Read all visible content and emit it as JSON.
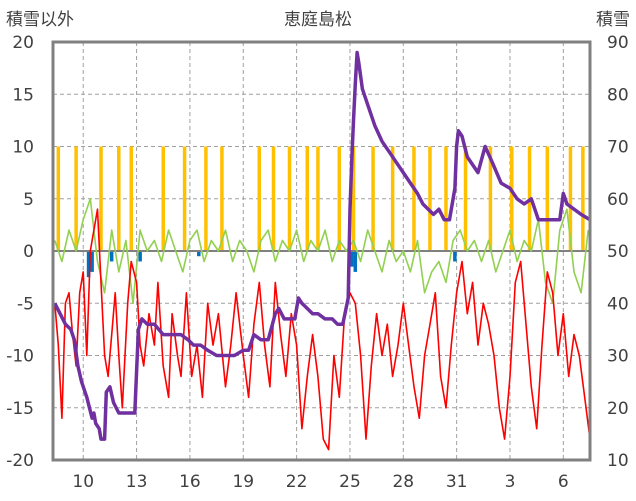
{
  "chart_data": {
    "type": "line",
    "title": "恵庭島松",
    "y_left_label": "積雪以外",
    "y_right_label": "積雪",
    "y_left_lim": [
      -20,
      20
    ],
    "y_right_lim": [
      10,
      90
    ],
    "y_left_ticks": [
      "20",
      "15",
      "10",
      "5",
      "0",
      "-5",
      "-10",
      "-15",
      "-20"
    ],
    "y_right_ticks": [
      "90",
      "80",
      "70",
      "60",
      "50",
      "40",
      "30",
      "20",
      "10"
    ],
    "x_ticks": [
      "10",
      "13",
      "16",
      "19",
      "22",
      "25",
      "28",
      "31",
      "3",
      "6"
    ],
    "x_tick_days": [
      10,
      13,
      16,
      19,
      22,
      25,
      28,
      31,
      34,
      37
    ],
    "x_range_days": [
      8.3,
      38.5
    ],
    "grid": true,
    "legend": "none",
    "colors": {
      "temperature": "#ff0000",
      "secondary": "#92d050",
      "snow_depth": "#7030a0",
      "positive_bars": "#ffc000",
      "negative_bars": "#0070c0",
      "grid": "#a0a0a0",
      "frame": "#808080"
    },
    "series": [
      {
        "axis": "right",
        "color": "#7030a0",
        "points": [
          [
            8.4,
            40
          ],
          [
            8.7,
            38
          ],
          [
            9.0,
            36
          ],
          [
            9.3,
            35
          ],
          [
            9.5,
            33
          ],
          [
            9.7,
            28
          ],
          [
            9.9,
            25
          ],
          [
            10.2,
            22
          ],
          [
            10.5,
            18
          ],
          [
            10.6,
            19
          ],
          [
            10.7,
            17
          ],
          [
            10.9,
            16
          ],
          [
            11.0,
            14
          ],
          [
            11.2,
            14
          ],
          [
            11.3,
            23
          ],
          [
            11.5,
            24
          ],
          [
            11.7,
            21
          ],
          [
            12.0,
            19
          ],
          [
            12.5,
            19
          ],
          [
            12.9,
            19
          ],
          [
            13.1,
            35
          ],
          [
            13.3,
            37
          ],
          [
            13.6,
            36
          ],
          [
            14.0,
            36
          ],
          [
            14.5,
            34
          ],
          [
            15.0,
            34
          ],
          [
            15.5,
            34
          ],
          [
            15.9,
            33
          ],
          [
            16.2,
            32
          ],
          [
            16.6,
            32
          ],
          [
            17.0,
            31
          ],
          [
            17.5,
            30
          ],
          [
            18.0,
            30
          ],
          [
            18.5,
            30
          ],
          [
            19.0,
            31
          ],
          [
            19.3,
            31
          ],
          [
            19.6,
            34
          ],
          [
            20.0,
            33
          ],
          [
            20.4,
            33
          ],
          [
            20.8,
            38
          ],
          [
            21.0,
            39
          ],
          [
            21.3,
            37
          ],
          [
            21.6,
            37
          ],
          [
            21.9,
            37
          ],
          [
            22.1,
            41
          ],
          [
            22.3,
            40
          ],
          [
            22.6,
            39
          ],
          [
            22.9,
            38
          ],
          [
            23.2,
            38
          ],
          [
            23.6,
            37
          ],
          [
            24.0,
            37
          ],
          [
            24.3,
            36
          ],
          [
            24.6,
            36
          ],
          [
            24.9,
            41
          ],
          [
            25.0,
            58
          ],
          [
            25.1,
            67
          ],
          [
            25.2,
            75
          ],
          [
            25.3,
            82
          ],
          [
            25.4,
            88
          ],
          [
            25.5,
            86
          ],
          [
            25.7,
            81
          ],
          [
            26.0,
            78
          ],
          [
            26.4,
            74
          ],
          [
            26.8,
            71
          ],
          [
            27.2,
            69
          ],
          [
            27.6,
            67
          ],
          [
            28.0,
            65
          ],
          [
            28.4,
            63
          ],
          [
            28.8,
            61
          ],
          [
            29.1,
            59
          ],
          [
            29.4,
            58
          ],
          [
            29.7,
            57
          ],
          [
            30.0,
            58
          ],
          [
            30.3,
            56
          ],
          [
            30.6,
            56
          ],
          [
            30.9,
            62
          ],
          [
            31.0,
            70
          ],
          [
            31.1,
            73
          ],
          [
            31.3,
            72
          ],
          [
            31.6,
            68
          ],
          [
            32.0,
            66
          ],
          [
            32.2,
            65
          ],
          [
            32.6,
            70
          ],
          [
            33.0,
            67
          ],
          [
            33.5,
            63
          ],
          [
            34.0,
            62
          ],
          [
            34.4,
            60
          ],
          [
            34.8,
            59
          ],
          [
            35.2,
            60
          ],
          [
            35.6,
            56
          ],
          [
            36.0,
            56
          ],
          [
            36.4,
            56
          ],
          [
            36.8,
            56
          ],
          [
            37.0,
            61
          ],
          [
            37.2,
            59
          ],
          [
            37.6,
            58
          ],
          [
            38.0,
            57
          ],
          [
            38.5,
            56
          ]
        ]
      },
      {
        "axis": "left",
        "color": "#ff0000",
        "points": [
          [
            8.4,
            -5
          ],
          [
            8.6,
            -9
          ],
          [
            8.8,
            -16
          ],
          [
            9.0,
            -5
          ],
          [
            9.2,
            -4
          ],
          [
            9.4,
            -8
          ],
          [
            9.6,
            -11
          ],
          [
            9.8,
            -4
          ],
          [
            10.0,
            -2
          ],
          [
            10.2,
            -10
          ],
          [
            10.4,
            0
          ],
          [
            10.6,
            2
          ],
          [
            10.8,
            4
          ],
          [
            11.0,
            -3
          ],
          [
            11.2,
            -10
          ],
          [
            11.4,
            -12
          ],
          [
            11.6,
            -8
          ],
          [
            11.8,
            -4
          ],
          [
            12.0,
            -10
          ],
          [
            12.2,
            -15
          ],
          [
            12.5,
            -5
          ],
          [
            12.7,
            -1
          ],
          [
            13.0,
            -3
          ],
          [
            13.2,
            -9
          ],
          [
            13.4,
            -11
          ],
          [
            13.7,
            -6
          ],
          [
            14.0,
            -9
          ],
          [
            14.2,
            -3
          ],
          [
            14.5,
            -11
          ],
          [
            14.8,
            -14
          ],
          [
            15.0,
            -6
          ],
          [
            15.3,
            -10
          ],
          [
            15.5,
            -12
          ],
          [
            15.8,
            -4
          ],
          [
            16.1,
            -12
          ],
          [
            16.4,
            -9
          ],
          [
            16.7,
            -14
          ],
          [
            17.0,
            -5
          ],
          [
            17.3,
            -9
          ],
          [
            17.6,
            -6
          ],
          [
            18.0,
            -13
          ],
          [
            18.3,
            -9
          ],
          [
            18.6,
            -4
          ],
          [
            19.0,
            -10
          ],
          [
            19.3,
            -14
          ],
          [
            19.6,
            -7
          ],
          [
            19.9,
            -3
          ],
          [
            20.2,
            -9
          ],
          [
            20.5,
            -13
          ],
          [
            20.8,
            -3
          ],
          [
            21.1,
            -8
          ],
          [
            21.4,
            -12
          ],
          [
            21.7,
            -6
          ],
          [
            22.0,
            -9
          ],
          [
            22.3,
            -17
          ],
          [
            22.6,
            -12
          ],
          [
            22.9,
            -8
          ],
          [
            23.2,
            -12
          ],
          [
            23.5,
            -18
          ],
          [
            23.8,
            -19
          ],
          [
            24.1,
            -10
          ],
          [
            24.4,
            -14
          ],
          [
            24.7,
            -6
          ],
          [
            25.0,
            -4
          ],
          [
            25.3,
            -5
          ],
          [
            25.6,
            -10
          ],
          [
            25.9,
            -18
          ],
          [
            26.2,
            -11
          ],
          [
            26.5,
            -6
          ],
          [
            26.8,
            -10
          ],
          [
            27.1,
            -7
          ],
          [
            27.4,
            -12
          ],
          [
            27.7,
            -9
          ],
          [
            28.0,
            -5
          ],
          [
            28.3,
            -9
          ],
          [
            28.6,
            -13
          ],
          [
            28.9,
            -16
          ],
          [
            29.2,
            -10
          ],
          [
            29.5,
            -7
          ],
          [
            29.8,
            -4
          ],
          [
            30.1,
            -12
          ],
          [
            30.4,
            -15
          ],
          [
            30.7,
            -9
          ],
          [
            31.0,
            -4
          ],
          [
            31.3,
            -1
          ],
          [
            31.6,
            -6
          ],
          [
            31.9,
            -3
          ],
          [
            32.2,
            -9
          ],
          [
            32.5,
            -5
          ],
          [
            32.8,
            -7
          ],
          [
            33.1,
            -10
          ],
          [
            33.4,
            -15
          ],
          [
            33.7,
            -18
          ],
          [
            34.0,
            -12
          ],
          [
            34.3,
            -3
          ],
          [
            34.6,
            -1
          ],
          [
            34.9,
            -7
          ],
          [
            35.2,
            -13
          ],
          [
            35.5,
            -17
          ],
          [
            35.8,
            -9
          ],
          [
            36.1,
            -2
          ],
          [
            36.4,
            -4
          ],
          [
            36.7,
            -10
          ],
          [
            37.0,
            -6
          ],
          [
            37.3,
            -12
          ],
          [
            37.6,
            -8
          ],
          [
            37.9,
            -10
          ],
          [
            38.2,
            -14
          ],
          [
            38.5,
            -18
          ]
        ]
      },
      {
        "axis": "left",
        "color": "#92d050",
        "points": [
          [
            8.4,
            1
          ],
          [
            8.8,
            -1
          ],
          [
            9.2,
            2
          ],
          [
            9.6,
            0
          ],
          [
            10.0,
            3
          ],
          [
            10.4,
            5
          ],
          [
            10.8,
            -1
          ],
          [
            11.2,
            -4
          ],
          [
            11.6,
            2
          ],
          [
            12.0,
            -2
          ],
          [
            12.4,
            1
          ],
          [
            12.8,
            -5
          ],
          [
            13.2,
            2
          ],
          [
            13.6,
            0
          ],
          [
            14.0,
            1
          ],
          [
            14.4,
            -1
          ],
          [
            14.8,
            2
          ],
          [
            15.2,
            0
          ],
          [
            15.6,
            -2
          ],
          [
            16.0,
            1
          ],
          [
            16.4,
            2
          ],
          [
            16.8,
            -1
          ],
          [
            17.2,
            1
          ],
          [
            17.6,
            0
          ],
          [
            18.0,
            2
          ],
          [
            18.4,
            -1
          ],
          [
            18.8,
            1
          ],
          [
            19.2,
            0
          ],
          [
            19.6,
            -2
          ],
          [
            20.0,
            1
          ],
          [
            20.4,
            2
          ],
          [
            20.8,
            -1
          ],
          [
            21.2,
            1
          ],
          [
            21.6,
            0
          ],
          [
            22.0,
            2
          ],
          [
            22.4,
            -1
          ],
          [
            22.8,
            1
          ],
          [
            23.2,
            0
          ],
          [
            23.6,
            2
          ],
          [
            24.0,
            -1
          ],
          [
            24.4,
            1
          ],
          [
            24.8,
            0
          ],
          [
            25.2,
            1
          ],
          [
            25.6,
            -1
          ],
          [
            26.0,
            2
          ],
          [
            26.4,
            0
          ],
          [
            26.8,
            -2
          ],
          [
            27.2,
            1
          ],
          [
            27.6,
            -1
          ],
          [
            28.0,
            0
          ],
          [
            28.4,
            -2
          ],
          [
            28.8,
            1
          ],
          [
            29.2,
            -4
          ],
          [
            29.6,
            -2
          ],
          [
            30.0,
            -1
          ],
          [
            30.4,
            -3
          ],
          [
            30.8,
            1
          ],
          [
            31.2,
            2
          ],
          [
            31.6,
            0
          ],
          [
            32.0,
            1
          ],
          [
            32.4,
            -1
          ],
          [
            32.8,
            1
          ],
          [
            33.2,
            -2
          ],
          [
            33.6,
            0
          ],
          [
            34.0,
            2
          ],
          [
            34.4,
            -1
          ],
          [
            34.8,
            1
          ],
          [
            35.2,
            0
          ],
          [
            35.6,
            3
          ],
          [
            36.0,
            -3
          ],
          [
            36.4,
            -5
          ],
          [
            36.8,
            2
          ],
          [
            37.2,
            4
          ],
          [
            37.6,
            -2
          ],
          [
            38.0,
            -4
          ],
          [
            38.4,
            2
          ]
        ]
      }
    ],
    "bars": {
      "axis": "left",
      "positive": {
        "color": "#ffc000",
        "x": [
          8.6,
          9.6,
          11.0,
          12.0,
          12.7,
          14.5,
          15.7,
          16.9,
          17.8,
          19.9,
          20.7,
          21.6,
          22.6,
          23.2,
          24.4,
          25.2,
          26.3,
          27.4,
          28.6,
          29.5,
          30.4,
          31.5,
          32.9,
          34.1,
          35.1,
          36.1,
          37.4,
          38.1
        ],
        "values": [
          10,
          10,
          10,
          10,
          10,
          10,
          10,
          10,
          10,
          10,
          10,
          10,
          10,
          10,
          10,
          10,
          10,
          10,
          10,
          10,
          10,
          10,
          10,
          10,
          10,
          10,
          10,
          10
        ]
      },
      "negative": {
        "color": "#0070c0",
        "x": [
          10.3,
          10.5,
          11.6,
          13.2,
          16.5,
          25.1,
          25.3,
          30.9
        ],
        "values": [
          -2.5,
          -2,
          -1,
          -1,
          -0.5,
          -1.5,
          -2,
          -1
        ]
      }
    }
  }
}
